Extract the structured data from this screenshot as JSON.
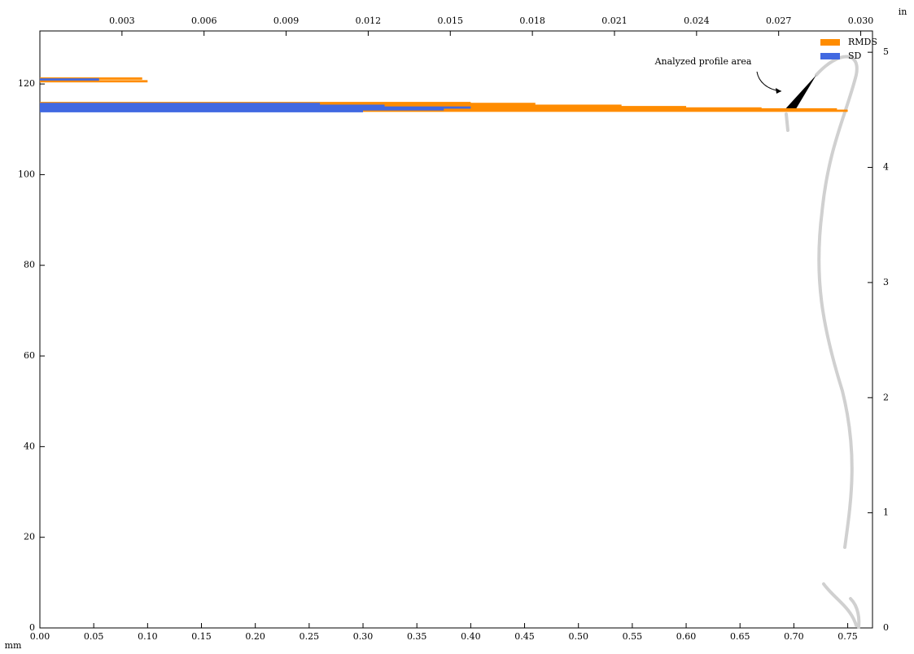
{
  "chart_data": {
    "type": "hbar",
    "x_label": "mm",
    "x2_label": "in",
    "annotation": "Analyzed profile area",
    "legend": "upper right",
    "xlim": [
      0,
      0.773
    ],
    "xticks": [
      {
        "value": 0,
        "label": "0.00"
      },
      0.05,
      {
        "value": 0.1,
        "label": "0.10"
      },
      0.15,
      {
        "value": 0.2,
        "label": "0.20"
      },
      0.25,
      {
        "value": 0.3,
        "label": "0.30"
      },
      0.35,
      {
        "value": 0.4,
        "label": "0.40"
      },
      0.45,
      {
        "value": 0.5,
        "label": "0.50"
      },
      0.55,
      {
        "value": 0.6,
        "label": "0.60"
      },
      0.65,
      {
        "value": 0.7,
        "label": "0.70"
      },
      0.75
    ],
    "x2lim": [
      0,
      0.03043
    ],
    "x2ticks": [
      0.003,
      0.006,
      0.009,
      0.012,
      0.015,
      0.018,
      0.021,
      0.024,
      0.027,
      {
        "value": 0.03,
        "label": "0.030"
      }
    ],
    "ylim": [
      0,
      131.7
    ],
    "yticks": [
      0,
      20,
      40,
      60,
      80,
      100,
      120
    ],
    "y2lim": [
      0,
      5.185
    ],
    "y2ticks": [
      0,
      1,
      2,
      3,
      4,
      5
    ],
    "series": [
      {
        "name": "RMDS",
        "color": "#ff8c00",
        "y": [
          121.2,
          120.6,
          115.8,
          115.6,
          115.2,
          114.9,
          114.6,
          114.4,
          114.1
        ],
        "values": [
          0.095,
          0.1,
          0.4,
          0.46,
          0.54,
          0.6,
          0.67,
          0.74,
          0.75
        ]
      },
      {
        "name": "SD",
        "color": "#4169e1",
        "y": [
          121.0,
          115.6,
          115.2,
          114.8,
          114.4,
          114.0
        ],
        "values": [
          0.055,
          0.26,
          0.32,
          0.4,
          0.375,
          0.3
        ]
      }
    ]
  }
}
